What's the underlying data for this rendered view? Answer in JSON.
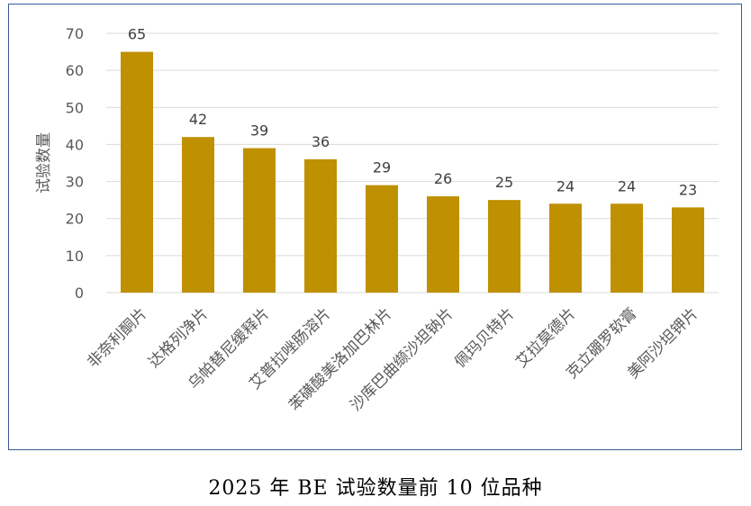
{
  "chart_data": {
    "type": "bar",
    "categories": [
      "非奈利酮片",
      "达格列净片",
      "乌帕替尼缓释片",
      "艾普拉唑肠溶片",
      "苯磺酸美洛加巴林片",
      "沙库巴曲缬沙坦钠片",
      "佩玛贝特片",
      "艾拉莫德片",
      "克立硼罗软膏",
      "美阿沙坦钾片"
    ],
    "values": [
      65,
      42,
      39,
      36,
      29,
      26,
      25,
      24,
      24,
      23
    ],
    "data_labels": [
      "65",
      "42",
      "39",
      "36",
      "29",
      "26",
      "25",
      "24",
      "24",
      "23"
    ],
    "ylabel": "试验数量",
    "ylim": [
      0,
      70
    ],
    "yticks": [
      0,
      10,
      20,
      30,
      40,
      50,
      60,
      70
    ],
    "grid": true,
    "bar_color": "#bf9000",
    "grid_color": "#d9d9d9"
  },
  "caption": "2025 年 BE 试验数量前 10 位品种"
}
